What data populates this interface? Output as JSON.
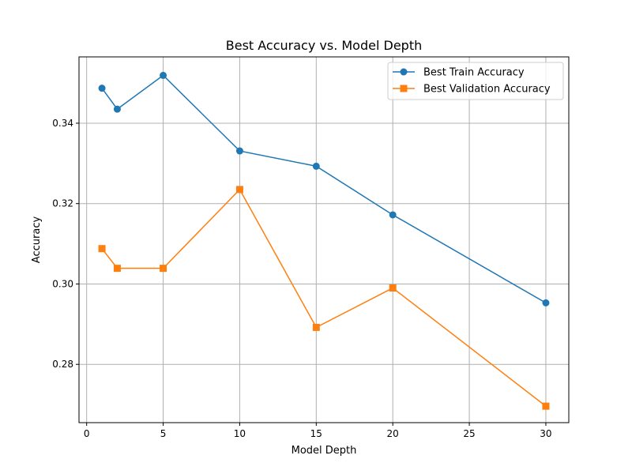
{
  "chart_data": {
    "type": "line",
    "title": "Best Accuracy vs. Model Depth",
    "xlabel": "Model Depth",
    "ylabel": "Accuracy",
    "xlim": [
      -0.5,
      31.5
    ],
    "ylim": [
      0.2655,
      0.3565
    ],
    "xticks": [
      0,
      5,
      10,
      15,
      20,
      25,
      30
    ],
    "xtick_labels": [
      "0",
      "5",
      "10",
      "15",
      "20",
      "25",
      "30"
    ],
    "yticks": [
      0.28,
      0.3,
      0.32,
      0.34
    ],
    "ytick_labels": [
      "0.28",
      "0.30",
      "0.32",
      "0.34"
    ],
    "grid": true,
    "legend_position": "top-right",
    "x": [
      1,
      2,
      5,
      10,
      15,
      20,
      30
    ],
    "series": [
      {
        "name": "Best Train Accuracy",
        "marker": "circle",
        "color": "#1f77b4",
        "values": [
          0.3487,
          0.3435,
          0.3519,
          0.3331,
          0.3293,
          0.3172,
          0.2953
        ]
      },
      {
        "name": "Best Validation Accuracy",
        "marker": "square",
        "color": "#ff7f0e",
        "values": [
          0.3088,
          0.3039,
          0.3039,
          0.3235,
          0.2892,
          0.299,
          0.2696
        ]
      }
    ]
  }
}
